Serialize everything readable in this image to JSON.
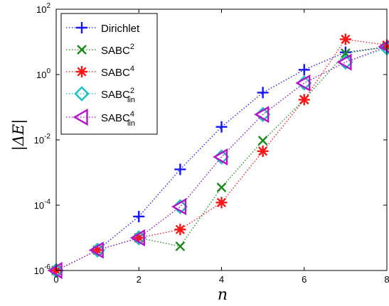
{
  "chart_data": {
    "type": "line",
    "title": "",
    "xlabel": "n",
    "ylabel": "|ΔE|",
    "xlim": [
      0,
      8
    ],
    "ylim": [
      1e-06,
      100
    ],
    "yscale": "log",
    "grid": false,
    "legend_position": "top-left",
    "x_ticks": [
      0,
      2,
      4,
      6,
      8
    ],
    "x_tick_labels": [
      "0",
      "2",
      "4",
      "6",
      "8"
    ],
    "y_ticks": [
      1e-06,
      0.0001,
      0.01,
      1,
      100
    ],
    "y_tick_base": [
      "10",
      "10",
      "10",
      "10",
      "10"
    ],
    "y_tick_exp": [
      "-6",
      "-4",
      "-2",
      "0",
      "2"
    ],
    "series": [
      {
        "name": "Dirichlet",
        "legend_base": "Dirichlet",
        "legend_sup": "",
        "legend_sub": "",
        "marker": "plus",
        "color": "#1515ff",
        "x": [
          0,
          1,
          2,
          3,
          4,
          5,
          6,
          7,
          8
        ],
        "values": [
          1e-06,
          4.2e-06,
          4.5e-05,
          0.00125,
          0.025,
          0.28,
          1.4,
          4.8,
          7.0
        ]
      },
      {
        "name": "SABC2",
        "legend_base": "SABC",
        "legend_sup": "2",
        "legend_sub": "",
        "marker": "x",
        "color": "#198a19",
        "x": [
          0,
          1,
          2,
          3,
          4,
          5,
          6,
          7,
          8
        ],
        "values": [
          1e-06,
          4.2e-06,
          1e-05,
          5.5e-06,
          0.00035,
          0.0095,
          0.17,
          4.5,
          7.0
        ]
      },
      {
        "name": "SABC4",
        "legend_base": "SABC",
        "legend_sup": "4",
        "legend_sub": "",
        "marker": "asterisk",
        "color": "#ff1515",
        "x": [
          0,
          1,
          2,
          3,
          4,
          5,
          6,
          7,
          8
        ],
        "values": [
          1e-06,
          4.2e-06,
          1e-05,
          1.8e-05,
          0.00012,
          0.0045,
          0.17,
          12,
          8.0
        ]
      },
      {
        "name": "SABC2lin",
        "legend_base": "SABC",
        "legend_sup": "2",
        "legend_sub": "lin",
        "marker": "diamond",
        "color": "#18c0c0",
        "x": [
          0,
          1,
          2,
          3,
          4,
          5,
          6,
          7,
          8
        ],
        "values": [
          1e-06,
          4.2e-06,
          1e-05,
          9e-05,
          0.003,
          0.06,
          0.55,
          2.4,
          6.5
        ]
      },
      {
        "name": "SABC4lin",
        "legend_base": "SABC",
        "legend_sup": "4",
        "legend_sub": "lin",
        "marker": "triangle-left",
        "color": "#b414c8",
        "x": [
          0,
          1,
          2,
          3,
          4,
          5,
          6,
          7,
          8
        ],
        "values": [
          1e-06,
          4.2e-06,
          1e-05,
          9e-05,
          0.003,
          0.06,
          0.55,
          2.4,
          7.2
        ]
      }
    ]
  }
}
